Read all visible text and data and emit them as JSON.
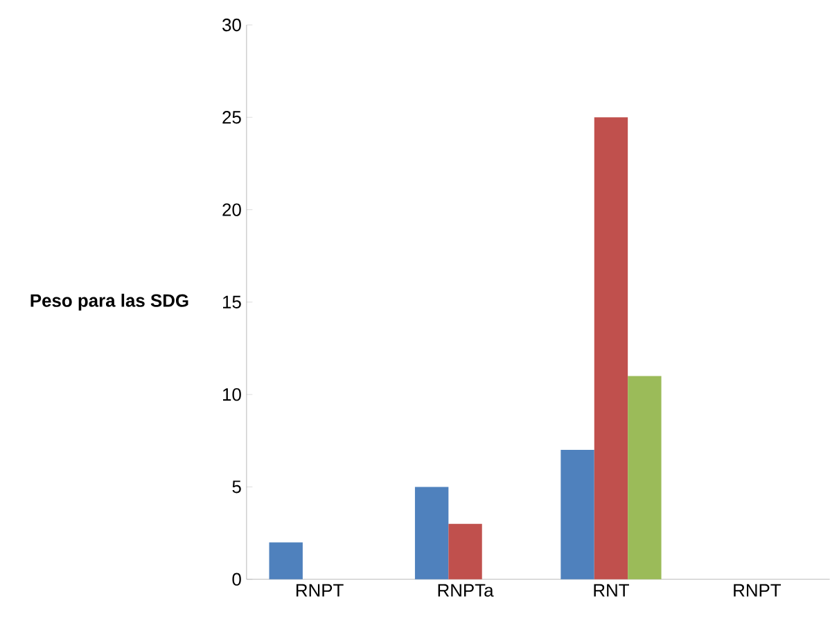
{
  "chart_data": {
    "type": "bar",
    "ylabel": "**Peso para las SDG**",
    "categories": [
      "RNPT",
      "RNPTa",
      "RNT",
      "RNPT"
    ],
    "series": [
      {
        "color": "#4f81bd",
        "values": [
          2,
          5,
          7,
          0
        ]
      },
      {
        "color": "#c0504d",
        "values": [
          0,
          3,
          25,
          0
        ]
      },
      {
        "color": "#9bbb59",
        "values": [
          0,
          0,
          11,
          0
        ]
      }
    ],
    "ylim": [
      0,
      30
    ],
    "yticks": [
      0,
      5,
      10,
      15,
      20,
      25,
      30
    ],
    "grid": false
  }
}
